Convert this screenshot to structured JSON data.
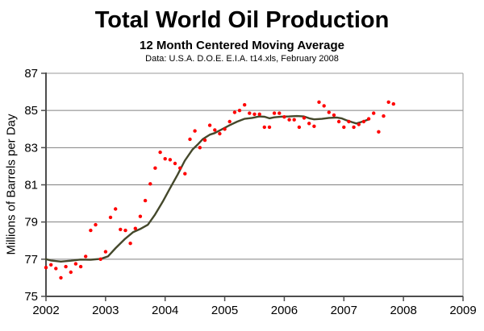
{
  "chart_data": {
    "type": "scatter",
    "title": "Total World Oil Production",
    "subtitle": "12 Month Centered Moving Average",
    "source_note": "Data: U.S.A. D.O.E. E.I.A. t14.xls, February 2008",
    "xlabel": "",
    "ylabel": "Millions of Barrels per Day",
    "xlim": [
      2002,
      2009
    ],
    "ylim": [
      75,
      87
    ],
    "xticks": [
      2002,
      2003,
      2004,
      2005,
      2006,
      2007,
      2008,
      2009
    ],
    "yticks": [
      75,
      77,
      79,
      81,
      83,
      85,
      87
    ],
    "grid": "horizontal-only",
    "legend": "none",
    "colors": {
      "scatter_points": "#ff0000",
      "moving_average_line": "#44482b",
      "gridline": "#808080",
      "axis": "#4d4d4d",
      "frame": "#999999"
    },
    "series": [
      {
        "name": "Monthly production (red dots)",
        "type": "scatter",
        "start_year": 2002,
        "start_month": 1,
        "interval": "monthly",
        "values": [
          76.55,
          76.7,
          76.5,
          76.0,
          76.6,
          76.3,
          76.75,
          76.6,
          77.15,
          78.55,
          78.85,
          77.0,
          77.4,
          79.25,
          79.7,
          78.6,
          78.55,
          77.85,
          78.65,
          79.3,
          80.15,
          81.05,
          81.9,
          82.75,
          82.4,
          82.35,
          82.15,
          81.9,
          81.6,
          83.45,
          83.9,
          83.0,
          83.4,
          84.2,
          83.95,
          83.75,
          84.0,
          84.4,
          84.9,
          85.0,
          85.3,
          84.85,
          84.8,
          84.8,
          84.1,
          84.1,
          84.85,
          84.85,
          84.65,
          84.5,
          84.5,
          84.1,
          84.6,
          84.3,
          84.15,
          85.45,
          85.25,
          84.9,
          84.75,
          84.4,
          84.1,
          84.4,
          84.1,
          84.25,
          84.4,
          84.55,
          84.85,
          83.85,
          84.7,
          85.45,
          85.35
        ]
      },
      {
        "name": "12 month centered moving average (dark line)",
        "type": "line",
        "points": [
          [
            2002.0,
            77.0
          ],
          [
            2002.08,
            76.93
          ],
          [
            2002.25,
            76.87
          ],
          [
            2002.42,
            76.92
          ],
          [
            2002.58,
            76.98
          ],
          [
            2002.75,
            76.97
          ],
          [
            2002.92,
            77.02
          ],
          [
            2003.04,
            77.15
          ],
          [
            2003.17,
            77.6
          ],
          [
            2003.33,
            78.1
          ],
          [
            2003.46,
            78.45
          ],
          [
            2003.58,
            78.62
          ],
          [
            2003.71,
            78.85
          ],
          [
            2003.83,
            79.4
          ],
          [
            2003.96,
            80.1
          ],
          [
            2004.08,
            80.8
          ],
          [
            2004.21,
            81.55
          ],
          [
            2004.33,
            82.3
          ],
          [
            2004.46,
            82.9
          ],
          [
            2004.54,
            83.15
          ],
          [
            2004.63,
            83.45
          ],
          [
            2004.75,
            83.7
          ],
          [
            2004.83,
            83.78
          ],
          [
            2004.96,
            84.0
          ],
          [
            2005.08,
            84.2
          ],
          [
            2005.21,
            84.4
          ],
          [
            2005.33,
            84.55
          ],
          [
            2005.46,
            84.6
          ],
          [
            2005.58,
            84.68
          ],
          [
            2005.67,
            84.66
          ],
          [
            2005.75,
            84.58
          ],
          [
            2005.83,
            84.63
          ],
          [
            2005.96,
            84.67
          ],
          [
            2006.08,
            84.68
          ],
          [
            2006.21,
            84.7
          ],
          [
            2006.33,
            84.68
          ],
          [
            2006.42,
            84.58
          ],
          [
            2006.5,
            84.52
          ],
          [
            2006.63,
            84.55
          ],
          [
            2006.75,
            84.6
          ],
          [
            2006.88,
            84.62
          ],
          [
            2006.96,
            84.58
          ],
          [
            2007.04,
            84.48
          ],
          [
            2007.13,
            84.38
          ],
          [
            2007.21,
            84.3
          ],
          [
            2007.29,
            84.38
          ],
          [
            2007.38,
            84.48
          ],
          [
            2007.42,
            84.52
          ]
        ]
      }
    ]
  }
}
